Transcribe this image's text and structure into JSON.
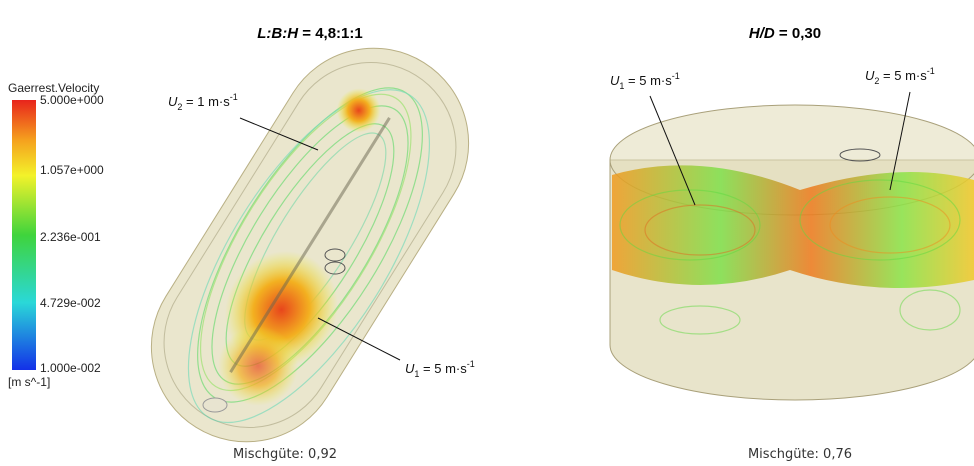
{
  "left": {
    "title_var": "L:B:H",
    "title_value": " = 4,8:1:1",
    "colorbar": {
      "title": "Gaerrest.Velocity",
      "labels": [
        "5.000e+000",
        "1.057e+000",
        "2.236e-001",
        "4.729e-002",
        "1.000e-002"
      ],
      "unit": "[m s^-1]"
    },
    "annotations": [
      {
        "symbol": "U",
        "subscript": "2",
        "text": " = 1 m·s",
        "superscript": "-1"
      },
      {
        "symbol": "U",
        "subscript": "1",
        "text": " = 5 m·s",
        "superscript": "-1"
      }
    ],
    "caption": "Mischgüte: 0,92"
  },
  "right": {
    "title_var": "H/D",
    "title_value": " = 0,30",
    "annotations": [
      {
        "symbol": "U",
        "subscript": "1",
        "text": " = 5 m·s",
        "superscript": "-1"
      },
      {
        "symbol": "U",
        "subscript": "2",
        "text": " = 5 m·s",
        "superscript": "-1"
      }
    ],
    "caption": "Mischgüte: 0,76"
  }
}
